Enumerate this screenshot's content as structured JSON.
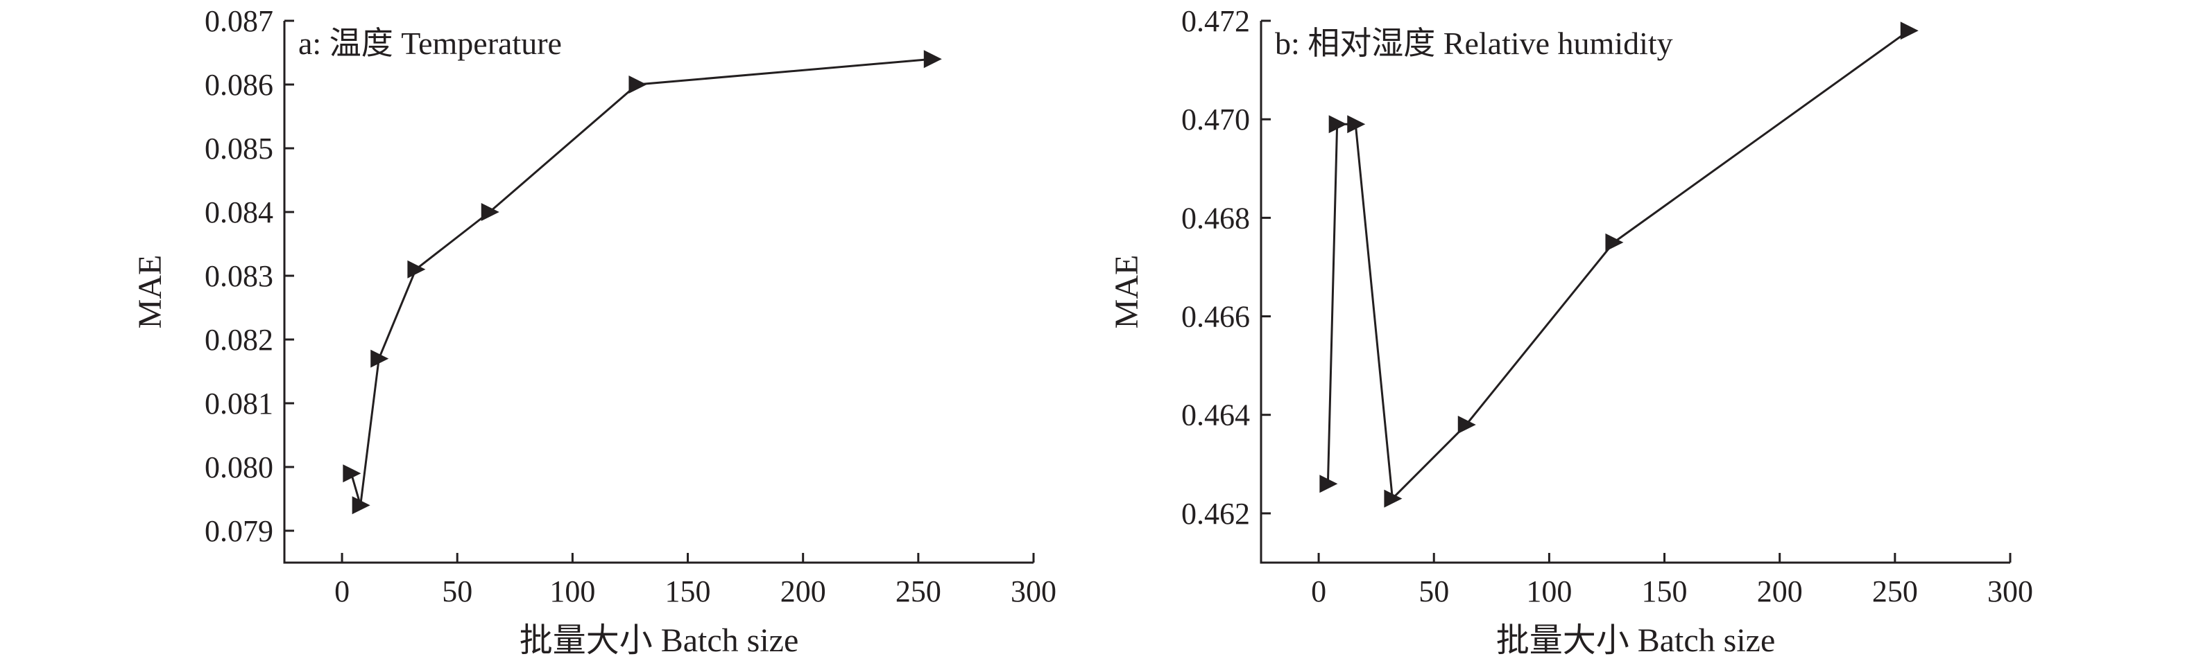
{
  "chart_data": [
    {
      "type": "line",
      "title": "a: 温度 Temperature",
      "xlabel": "批量大小 Batch size",
      "ylabel": "MAE",
      "xlim": [
        -25,
        300
      ],
      "ylim": [
        0.0785,
        0.087
      ],
      "xticks": [
        0,
        50,
        100,
        150,
        200,
        250,
        300
      ],
      "yticks": [
        0.079,
        0.08,
        0.081,
        0.082,
        0.083,
        0.084,
        0.085,
        0.086,
        0.087
      ],
      "ytick_labels": [
        "0.079",
        "0.080",
        "0.081",
        "0.082",
        "0.083",
        "0.084",
        "0.085",
        "0.086",
        "0.087"
      ],
      "marker": "triangle-right",
      "grid": false,
      "series": [
        {
          "x": [
            4,
            8,
            16,
            32,
            64,
            128,
            256
          ],
          "y": [
            0.0799,
            0.0794,
            0.0817,
            0.0831,
            0.084,
            0.086,
            0.0864
          ]
        }
      ]
    },
    {
      "type": "line",
      "title": "b: 相对湿度 Relative humidity",
      "xlabel": "批量大小 Batch size",
      "ylabel": "MAE",
      "xlim": [
        -25,
        300
      ],
      "ylim": [
        0.461,
        0.472
      ],
      "xticks": [
        0,
        50,
        100,
        150,
        200,
        250,
        300
      ],
      "yticks": [
        0.462,
        0.464,
        0.466,
        0.468,
        0.47,
        0.472
      ],
      "ytick_labels": [
        "0.462",
        "0.464",
        "0.466",
        "0.468",
        "0.470",
        "0.472"
      ],
      "marker": "triangle-right",
      "grid": false,
      "series": [
        {
          "x": [
            4,
            8,
            16,
            32,
            64,
            128,
            256
          ],
          "y": [
            0.4626,
            0.4699,
            0.4699,
            0.4623,
            0.4638,
            0.4675,
            0.4718
          ]
        }
      ]
    }
  ]
}
